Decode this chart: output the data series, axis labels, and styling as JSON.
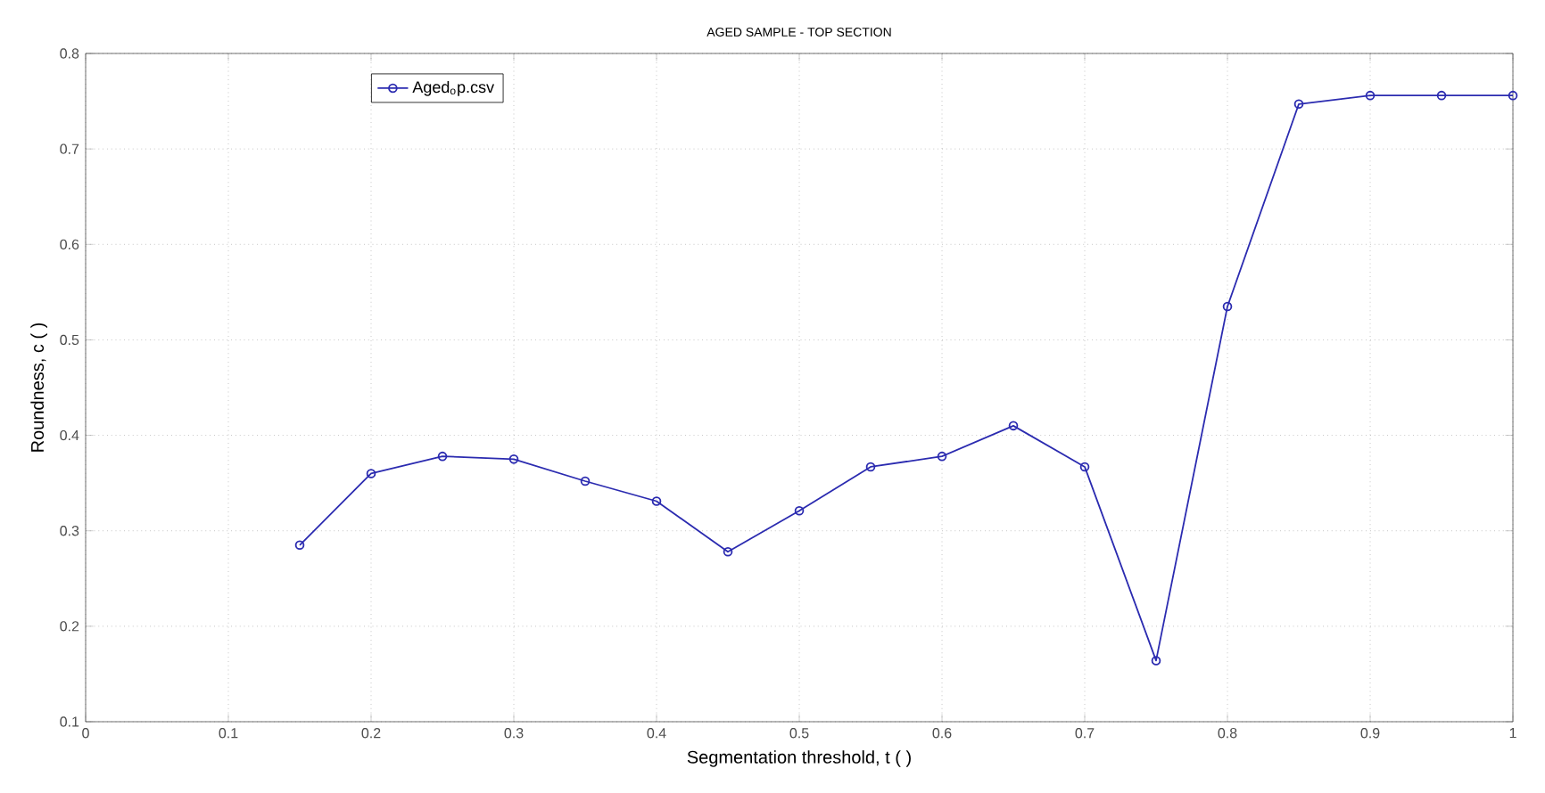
{
  "chart_data": {
    "type": "line",
    "title": "AGED SAMPLE - TOP SECTION",
    "xlabel": "Segmentation threshold, t ( )",
    "ylabel": "Roundness, c ( )",
    "x": [
      0.15,
      0.2,
      0.25,
      0.3,
      0.35,
      0.4,
      0.45,
      0.5,
      0.55,
      0.6,
      0.65,
      0.7,
      0.75,
      0.8,
      0.85,
      0.9,
      0.95,
      1.0
    ],
    "series": [
      {
        "name": "Aged$_{o}$p.csv",
        "color": "#2b2bb0",
        "values": [
          0.285,
          0.36,
          0.378,
          0.375,
          0.352,
          0.331,
          0.278,
          0.321,
          0.367,
          0.378,
          0.41,
          0.367,
          0.164,
          0.535,
          0.747,
          0.756,
          0.756,
          0.756
        ]
      }
    ],
    "xlim": [
      0,
      1
    ],
    "ylim": [
      0.1,
      0.8
    ],
    "xticks": [
      0,
      0.1,
      0.2,
      0.3,
      0.4,
      0.5,
      0.6,
      0.7,
      0.8,
      0.9,
      1
    ],
    "yticks": [
      0.1,
      0.2,
      0.3,
      0.4,
      0.5,
      0.6,
      0.7,
      0.8
    ],
    "grid": true,
    "legend": "top left",
    "marker": "circle",
    "line_style": "solid"
  }
}
